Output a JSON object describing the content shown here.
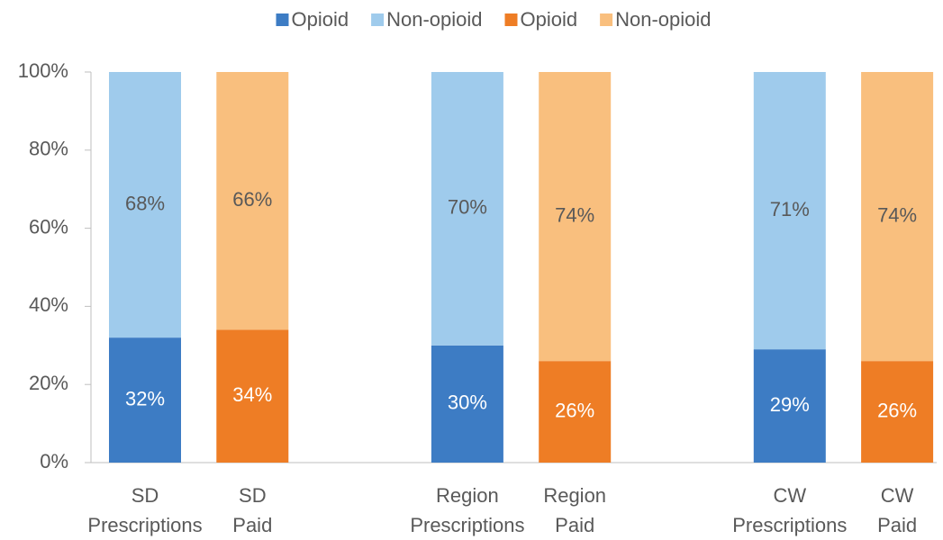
{
  "chart_data": {
    "type": "stacked_bar",
    "categories": [
      [
        "SD",
        "Prescriptions"
      ],
      [
        "SD",
        "Paid"
      ],
      null,
      [
        "Region",
        "Prescriptions"
      ],
      [
        "Region",
        "Paid"
      ],
      null,
      [
        "CW",
        "Prescriptions"
      ],
      [
        "CW",
        "Paid"
      ]
    ],
    "series": [
      {
        "name": "Opioid",
        "color": "#3d7cc4",
        "label_color": "#ffffff",
        "values": [
          32,
          null,
          null,
          30,
          null,
          null,
          29,
          null
        ],
        "value_labels": [
          "32%",
          null,
          null,
          "30%",
          null,
          null,
          "29%",
          null
        ]
      },
      {
        "name": "Non-opioid",
        "color": "#9fcbec",
        "label_color": "#595959",
        "values": [
          68,
          null,
          null,
          70,
          null,
          null,
          71,
          null
        ],
        "value_labels": [
          "68%",
          null,
          null,
          "70%",
          null,
          null,
          "71%",
          null
        ]
      },
      {
        "name": "Opioid",
        "color": "#ee7d25",
        "label_color": "#ffffff",
        "values": [
          null,
          34,
          null,
          null,
          26,
          null,
          null,
          26
        ],
        "value_labels": [
          null,
          "34%",
          null,
          null,
          "26%",
          null,
          null,
          "26%"
        ]
      },
      {
        "name": "Non-opioid",
        "color": "#f9bf7e",
        "label_color": "#595959",
        "values": [
          null,
          66,
          null,
          null,
          74,
          null,
          null,
          74
        ],
        "value_labels": [
          null,
          "66%",
          null,
          null,
          "74%",
          null,
          null,
          "74%"
        ]
      }
    ],
    "ylim": [
      0,
      100
    ],
    "yticks": [
      {
        "value": 0,
        "label": "0%"
      },
      {
        "value": 20,
        "label": "20%"
      },
      {
        "value": 40,
        "label": "40%"
      },
      {
        "value": 60,
        "label": "60%"
      },
      {
        "value": 80,
        "label": "80%"
      },
      {
        "value": 100,
        "label": "100%"
      }
    ],
    "legend": "top"
  }
}
